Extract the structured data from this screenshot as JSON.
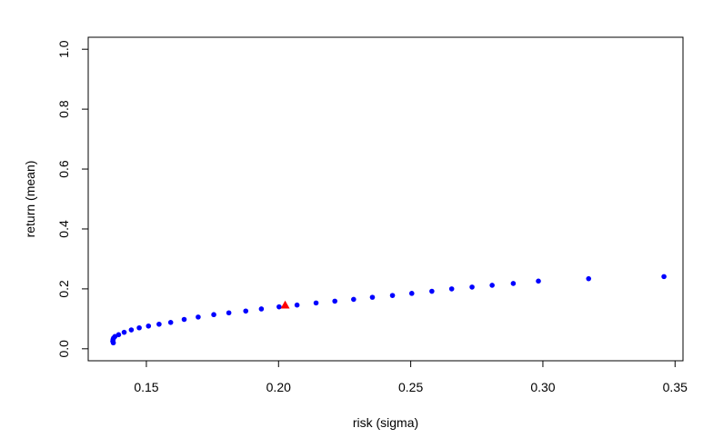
{
  "chart_data": {
    "type": "scatter",
    "xlabel": "risk (sigma)",
    "ylabel": "return (mean)",
    "xlim": [
      0.128,
      0.353
    ],
    "ylim": [
      -0.04,
      1.04
    ],
    "x_ticks": [
      0.15,
      0.2,
      0.25,
      0.3,
      0.35
    ],
    "x_tick_labels": [
      "0.15",
      "0.20",
      "0.25",
      "0.30",
      "0.35"
    ],
    "y_ticks": [
      0.0,
      0.2,
      0.4,
      0.6,
      0.8,
      1.0
    ],
    "y_tick_labels": [
      "0.0",
      "0.2",
      "0.4",
      "0.6",
      "0.8",
      "1.0"
    ],
    "grid": false,
    "series": [
      {
        "marker": "circle",
        "color": "#0000ff",
        "x": [
          0.1375,
          0.1373,
          0.1374,
          0.1376,
          0.1381,
          0.1395,
          0.1416,
          0.1443,
          0.1473,
          0.1508,
          0.1548,
          0.1592,
          0.1643,
          0.1696,
          0.1755,
          0.1812,
          0.1876,
          0.1935,
          0.2002,
          0.207,
          0.2142,
          0.2213,
          0.2284,
          0.2355,
          0.2431,
          0.2504,
          0.258,
          0.2655,
          0.2732,
          0.2808,
          0.2888,
          0.2983,
          0.3173,
          0.3458
        ],
        "y": [
          0.02,
          0.025,
          0.031,
          0.036,
          0.041,
          0.047,
          0.055,
          0.063,
          0.07,
          0.076,
          0.082,
          0.088,
          0.098,
          0.106,
          0.114,
          0.12,
          0.126,
          0.133,
          0.14,
          0.146,
          0.153,
          0.159,
          0.165,
          0.172,
          0.178,
          0.185,
          0.192,
          0.2,
          0.206,
          0.212,
          0.218,
          0.226,
          0.234,
          0.241
        ]
      },
      {
        "marker": "triangle",
        "color": "#ff0000",
        "x": [
          0.2025
        ],
        "y": [
          0.146
        ]
      }
    ]
  }
}
